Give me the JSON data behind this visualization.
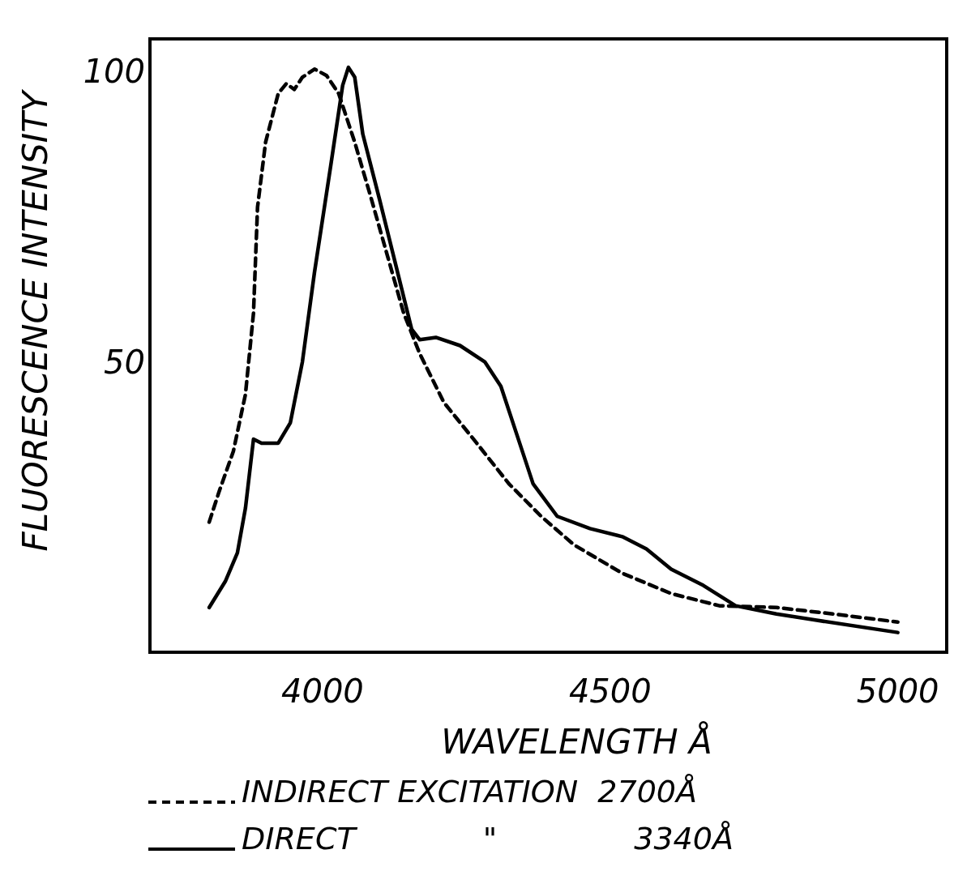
{
  "chart_data": {
    "type": "line",
    "xlabel": "WAVELENGTH Å",
    "ylabel": "FLUORESCENCE INTENSITY",
    "xlim": [
      3700,
      5085
    ],
    "ylim": [
      0,
      105.6
    ],
    "xticks": [
      4000,
      4500,
      5000
    ],
    "yticks": [
      50,
      100
    ],
    "grid": false,
    "legend": "bottom",
    "series": [
      {
        "name": "INDIRECT EXCITATION  2700Å",
        "color": "#000000",
        "line_style": "dashed",
        "x": [
          3803,
          3820,
          3845,
          3866,
          3880,
          3887,
          3901,
          3923,
          3937,
          3951,
          3965,
          3986,
          4007,
          4028,
          4056,
          4085,
          4113,
          4141,
          4169,
          4211,
          4268,
          4324,
          4380,
          4437,
          4521,
          4606,
          4690,
          4789,
          4887,
          5000
        ],
        "values": [
          22.4,
          27.6,
          34.6,
          44.4,
          58.4,
          76.6,
          87.8,
          96.2,
          97.9,
          96.9,
          99,
          100.4,
          99.3,
          96.2,
          87.8,
          78,
          68.2,
          58.4,
          51.4,
          43,
          36,
          29,
          23.4,
          18.5,
          13.6,
          10.1,
          8,
          7.7,
          6.6,
          5.2
        ]
      },
      {
        "name": "DIRECT             \"              3340Å",
        "color": "#000000",
        "line_style": "solid",
        "x": [
          3803,
          3831,
          3852,
          3866,
          3880,
          3894,
          3923,
          3944,
          3965,
          3986,
          4014,
          4035,
          4045,
          4056,
          4070,
          4099,
          4127,
          4155,
          4169,
          4197,
          4239,
          4282,
          4310,
          4338,
          4366,
          4408,
          4465,
          4521,
          4563,
          4606,
          4662,
          4718,
          4789,
          4859,
          5000
        ],
        "values": [
          7.7,
          12.2,
          17.1,
          24.8,
          36.7,
          36,
          36,
          39.5,
          50,
          65.4,
          83.6,
          97.6,
          100.7,
          99,
          89.2,
          78,
          66.8,
          55.6,
          53.8,
          54.2,
          52.8,
          50,
          45.8,
          37.4,
          29,
          23.4,
          21.3,
          19.9,
          17.8,
          14.3,
          11.5,
          8,
          6.6,
          5.5,
          3.4
        ]
      }
    ]
  }
}
